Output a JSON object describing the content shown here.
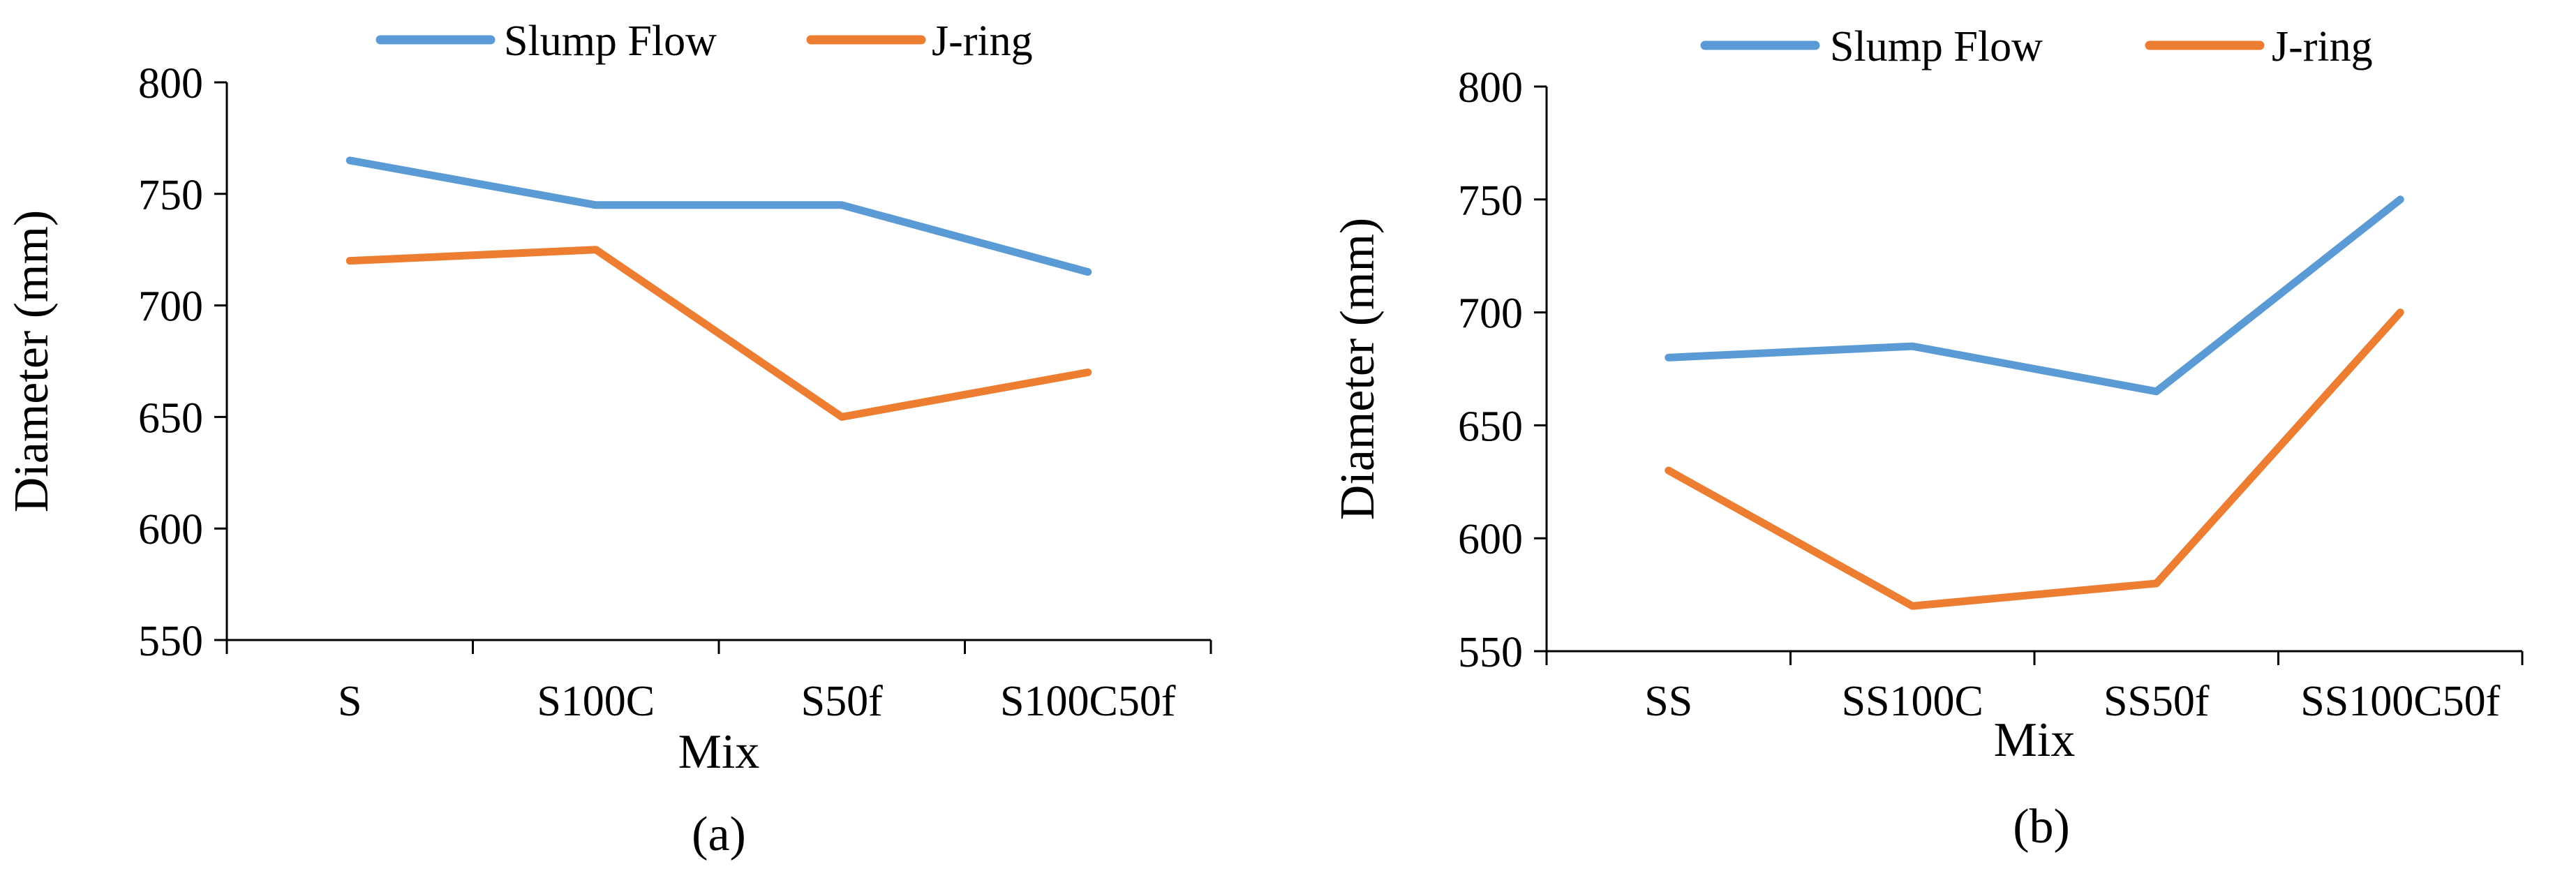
{
  "chart_data": [
    {
      "type": "line",
      "panel_label": "(a)",
      "categories": [
        "S",
        "S100C",
        "S50f",
        "S100C50f"
      ],
      "series": [
        {
          "name": "Slump Flow",
          "color": "#5B9BD5",
          "values": [
            765,
            745,
            745,
            715
          ]
        },
        {
          "name": "J-ring",
          "color": "#ED7D31",
          "values": [
            720,
            725,
            650,
            670
          ]
        }
      ],
      "title": "",
      "xlabel": "Mix",
      "ylabel": "Diameter (mm)",
      "ylim": [
        550,
        800
      ],
      "yticks": [
        550,
        600,
        650,
        700,
        750,
        800
      ],
      "grid": false,
      "legend_position": "top"
    },
    {
      "type": "line",
      "panel_label": "(b)",
      "categories": [
        "SS",
        "SS100C",
        "SS50f",
        "SS100C50f"
      ],
      "series": [
        {
          "name": "Slump Flow",
          "color": "#5B9BD5",
          "values": [
            680,
            685,
            665,
            750
          ]
        },
        {
          "name": "J-ring",
          "color": "#ED7D31",
          "values": [
            630,
            570,
            580,
            700
          ]
        }
      ],
      "title": "",
      "xlabel": "Mix",
      "ylabel": "Diameter (mm)",
      "ylim": [
        550,
        800
      ],
      "yticks": [
        550,
        600,
        650,
        700,
        750,
        800
      ],
      "grid": false,
      "legend_position": "top"
    }
  ]
}
